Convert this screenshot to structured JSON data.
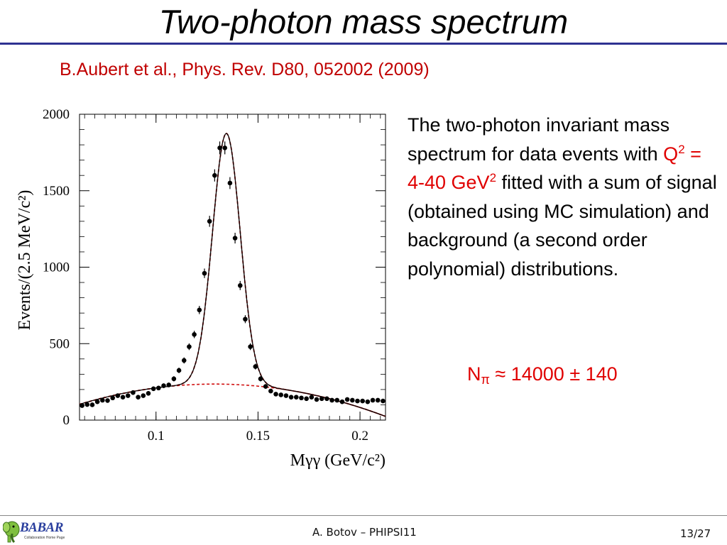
{
  "slide": {
    "title": "Two-photon mass spectrum",
    "citation": "B.Aubert et al., Phys. Rev. D80, 052002 (2009)",
    "description": {
      "part1": "The two-photon invariant mass spectrum for data events with ",
      "q_symbol": "Q",
      "q_exp": "2",
      "q_range": " = 4-40 GeV",
      "gev_exp": "2",
      "part2": " fitted with a sum of signal (obtained using MC simulation) and background (a second order polynomial) distributions."
    },
    "result": {
      "symbol": "N",
      "subscript": "π",
      "text": " ≈ 14000 ± 140"
    }
  },
  "footer": {
    "logo_text": "BABAR",
    "logo_sub": "Collaboration Home Page",
    "author": "A. Botov – PHIPSI11",
    "page": "13/27"
  },
  "colors": {
    "title_rule": "#2e3191",
    "citation": "#c00000",
    "highlight": "#e00000",
    "fit": "#000000",
    "background_fit": "#d01010"
  },
  "chart_data": {
    "type": "scatter",
    "title": "",
    "xlabel": "Mγγ (GeV/c²)",
    "ylabel": "Events/(2.5 MeV/c²)",
    "xlim": [
      0.0625,
      0.2125
    ],
    "ylim": [
      0,
      2000
    ],
    "xticks": [
      0.1,
      0.15,
      0.2
    ],
    "xtick_labels": [
      "0.1",
      "0.15",
      "0.2"
    ],
    "yticks": [
      0,
      500,
      1000,
      1500,
      2000
    ],
    "ytick_labels": [
      "0",
      "500",
      "1000",
      "1500",
      "2000"
    ],
    "grid": false,
    "series": [
      {
        "kind": "points-with-errors",
        "x": [
          0.06375,
          0.06625,
          0.06875,
          0.07125,
          0.07375,
          0.07625,
          0.07875,
          0.08125,
          0.08375,
          0.08625,
          0.08875,
          0.09125,
          0.09375,
          0.09625,
          0.09875,
          0.10125,
          0.10375,
          0.10625,
          0.10875,
          0.11125,
          0.11375,
          0.11625,
          0.11875,
          0.12125,
          0.12375,
          0.12625,
          0.12875,
          0.13125,
          0.13375,
          0.13625,
          0.13875,
          0.14125,
          0.14375,
          0.14625,
          0.14875,
          0.15125,
          0.15375,
          0.15625,
          0.15875,
          0.16125,
          0.16375,
          0.16625,
          0.16875,
          0.17125,
          0.17375,
          0.17625,
          0.17875,
          0.18125,
          0.18375,
          0.18625,
          0.18875,
          0.19125,
          0.19375,
          0.19625,
          0.19875,
          0.20125,
          0.20375,
          0.20625,
          0.20875,
          0.21125
        ],
        "y": [
          95,
          102,
          100,
          120,
          130,
          128,
          145,
          160,
          150,
          160,
          180,
          150,
          160,
          175,
          205,
          210,
          225,
          230,
          270,
          325,
          390,
          480,
          560,
          720,
          960,
          1300,
          1600,
          1780,
          1780,
          1550,
          1190,
          880,
          660,
          480,
          350,
          270,
          220,
          190,
          170,
          165,
          160,
          150,
          150,
          145,
          140,
          150,
          135,
          140,
          140,
          130,
          130,
          120,
          135,
          130,
          125,
          125,
          120,
          130,
          130,
          125
        ],
        "errors": [
          11,
          11,
          11,
          12,
          12,
          12,
          13,
          13,
          13,
          13,
          14,
          13,
          13,
          14,
          15,
          15,
          15,
          15,
          17,
          18,
          20,
          22,
          24,
          27,
          31,
          36,
          40,
          42,
          42,
          39,
          35,
          30,
          26,
          22,
          19,
          17,
          15,
          14,
          13,
          13,
          13,
          13,
          13,
          12,
          12,
          12,
          12,
          12,
          12,
          11,
          11,
          11,
          12,
          11,
          11,
          11,
          11,
          11,
          11,
          11
        ]
      },
      {
        "name": "",
        "kind": "total-fit-curve",
        "peak_mean": 0.1345,
        "peak_sigma": 0.0068,
        "peak_height": 1640
      },
      {
        "name": "",
        "kind": "background-polynomial",
        "poly_coeffs": [
          -264,
          7760,
          -30133
        ]
      }
    ]
  }
}
